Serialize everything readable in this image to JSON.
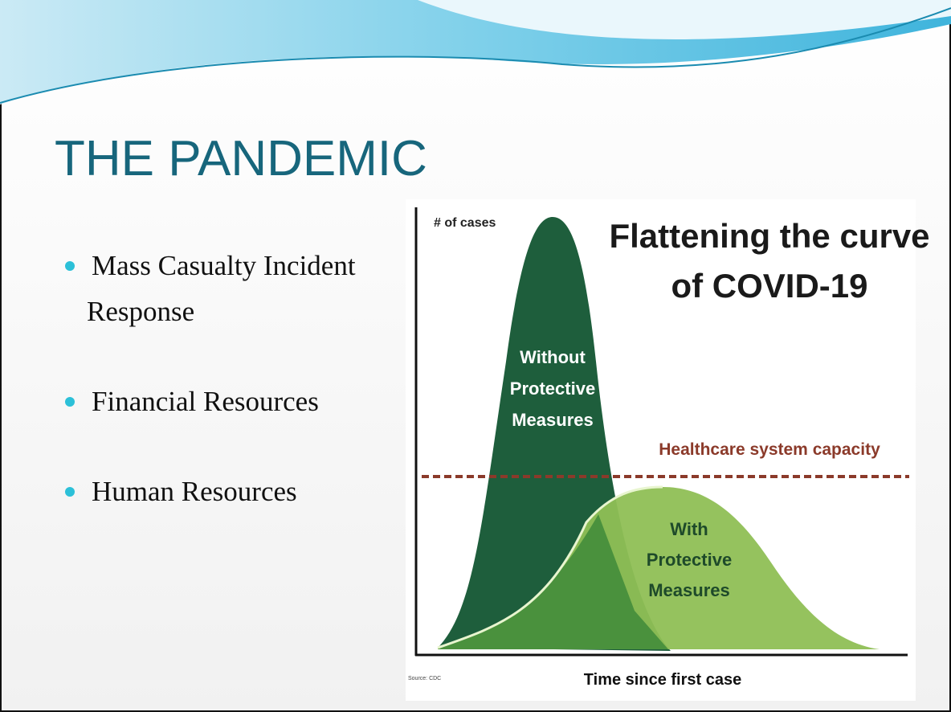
{
  "slide": {
    "title": "THE PANDEMIC",
    "bullets": [
      [
        "Mass Casualty Incident",
        "Response"
      ],
      [
        "Financial Resources"
      ],
      [
        "Human Resources"
      ]
    ]
  },
  "figure": {
    "y_label": "# of cases",
    "title": [
      "Flattening the curve",
      "of COVID-19"
    ],
    "without_label": [
      "Without",
      "Protective",
      "Measures"
    ],
    "capacity_label": "Healthcare system capacity",
    "with_label": [
      "With",
      "Protective",
      "Measures"
    ],
    "x_label": "Time since first case",
    "source": "Source: CDC"
  }
}
